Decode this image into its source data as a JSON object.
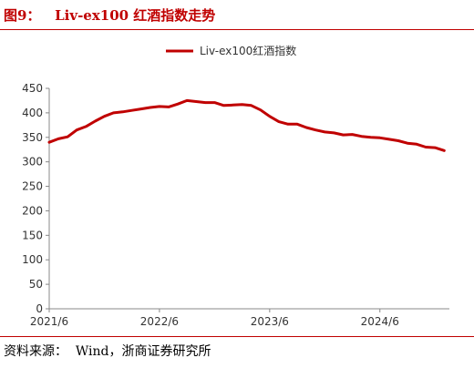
{
  "figure": {
    "title": "图9：   Liv-ex100 红酒指数走势",
    "source": "资料来源：  Wind，浙商证券研究所"
  },
  "colors": {
    "accent": "#c00000",
    "series": "#c00000"
  },
  "chart_data": {
    "type": "line",
    "title": "",
    "xlabel": "",
    "ylabel": "",
    "ylim": [
      0,
      450
    ],
    "y_ticks": [
      0,
      50,
      100,
      150,
      200,
      250,
      300,
      350,
      400,
      450
    ],
    "x_ticks": [
      "2021/6",
      "2022/6",
      "2023/6",
      "2024/6"
    ],
    "xlim": [
      "2021/6",
      "2025/1"
    ],
    "legend": "top-center",
    "grid": false,
    "series": [
      {
        "name": "Liv-ex100红酒指数",
        "points": [
          [
            "2021/6",
            340
          ],
          [
            "2021/7",
            347
          ],
          [
            "2021/8",
            351
          ],
          [
            "2021/9",
            365
          ],
          [
            "2021/10",
            372
          ],
          [
            "2021/11",
            383
          ],
          [
            "2021/12",
            393
          ],
          [
            "2022/1",
            400
          ],
          [
            "2022/2",
            402
          ],
          [
            "2022/3",
            405
          ],
          [
            "2022/4",
            408
          ],
          [
            "2022/5",
            411
          ],
          [
            "2022/6",
            413
          ],
          [
            "2022/7",
            412
          ],
          [
            "2022/8",
            418
          ],
          [
            "2022/9",
            425
          ],
          [
            "2022/10",
            423
          ],
          [
            "2022/11",
            421
          ],
          [
            "2022/12",
            421
          ],
          [
            "2023/1",
            415
          ],
          [
            "2023/2",
            416
          ],
          [
            "2023/3",
            417
          ],
          [
            "2023/4",
            415
          ],
          [
            "2023/5",
            406
          ],
          [
            "2023/6",
            393
          ],
          [
            "2023/7",
            382
          ],
          [
            "2023/8",
            377
          ],
          [
            "2023/9",
            377
          ],
          [
            "2023/10",
            370
          ],
          [
            "2023/11",
            365
          ],
          [
            "2023/12",
            361
          ],
          [
            "2024/1",
            359
          ],
          [
            "2024/2",
            355
          ],
          [
            "2024/3",
            356
          ],
          [
            "2024/4",
            352
          ],
          [
            "2024/5",
            350
          ],
          [
            "2024/6",
            349
          ],
          [
            "2024/7",
            346
          ],
          [
            "2024/8",
            343
          ],
          [
            "2024/9",
            338
          ],
          [
            "2024/10",
            336
          ],
          [
            "2024/11",
            330
          ],
          [
            "2024/12",
            329
          ],
          [
            "2025/1",
            323
          ]
        ]
      }
    ]
  }
}
